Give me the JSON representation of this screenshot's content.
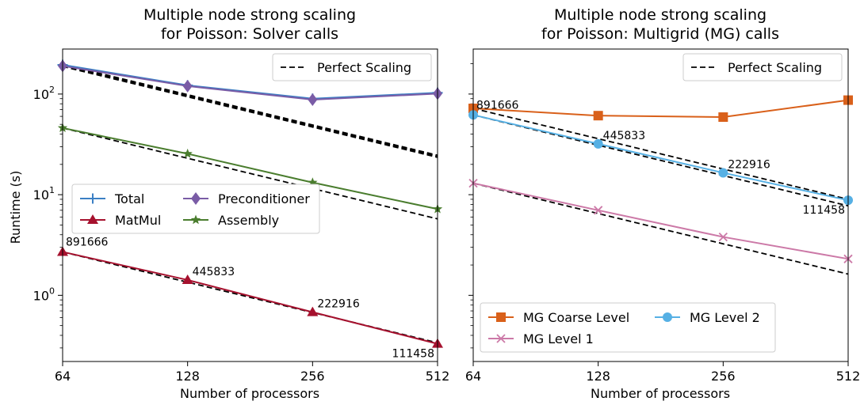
{
  "figure_note": "",
  "chart_data": [
    {
      "type": "line",
      "title": "Multiple node strong scaling\nfor Poisson: Solver calls",
      "xlabel": "Number of processors",
      "ylabel": "Runtime (s)",
      "x": [
        64,
        128,
        256,
        512
      ],
      "xscale": "log2",
      "yscale": "log10",
      "ylim": [
        0.22,
        280
      ],
      "xticks": [
        "64",
        "128",
        "256",
        "512"
      ],
      "yticks": [
        "10^0",
        "10^1",
        "10^2"
      ],
      "perfect_scaling_label": "Perfect Scaling",
      "series": [
        {
          "name": "Total",
          "color": "#3b7fc4",
          "marker": "plus",
          "values": [
            195,
            122,
            90,
            103
          ]
        },
        {
          "name": "Preconditioner",
          "color": "#7a5ca6",
          "marker": "diamond",
          "values": [
            190,
            120,
            88,
            101
          ]
        },
        {
          "name": "MatMul",
          "color": "#a6112e",
          "marker": "triangle",
          "values": [
            2.7,
            1.42,
            0.68,
            0.33
          ]
        },
        {
          "name": "Assembly",
          "color": "#4a7d2e",
          "marker": "star",
          "values": [
            46,
            25.5,
            13.2,
            7.2
          ]
        }
      ],
      "perfect_lines": [
        {
          "start": 195,
          "width": 3
        },
        {
          "start": 190,
          "width": 3
        },
        {
          "start": 46,
          "width": 1.8
        },
        {
          "start": 2.7,
          "width": 1.8
        }
      ],
      "annotations": [
        {
          "text": "891666",
          "x": 64,
          "y": 2.7
        },
        {
          "text": "445833",
          "x": 128,
          "y": 1.42
        },
        {
          "text": "222916",
          "x": 256,
          "y": 0.68
        },
        {
          "text": "111458",
          "x": 512,
          "y": 0.33
        }
      ],
      "legend": {
        "placement": "center-left",
        "items": [
          "Total",
          "Preconditioner",
          "MatMul",
          "Assembly"
        ]
      }
    },
    {
      "type": "line",
      "title": "Multiple node strong scaling\nfor Poisson: Multigrid (MG) calls",
      "xlabel": "Number of processors",
      "ylabel": "",
      "x": [
        64,
        128,
        256,
        512
      ],
      "xscale": "log2",
      "yscale": "log10",
      "ylim": [
        0.22,
        280
      ],
      "xticks": [
        "64",
        "128",
        "256",
        "512"
      ],
      "perfect_scaling_label": "Perfect Scaling",
      "series": [
        {
          "name": "MG Coarse Level",
          "color": "#d9601a",
          "marker": "square",
          "values": [
            72,
            61,
            59,
            87
          ]
        },
        {
          "name": "MG Level 2",
          "color": "#56b0e4",
          "marker": "circle",
          "values": [
            62,
            32,
            16.5,
            8.8
          ]
        },
        {
          "name": "MG Level 1",
          "color": "#cc79a7",
          "marker": "x",
          "values": [
            13,
            7.0,
            3.8,
            2.3
          ]
        }
      ],
      "perfect_lines": [
        {
          "start": 72,
          "width": 1.8
        },
        {
          "start": 62,
          "width": 1.8
        },
        {
          "start": 13,
          "width": 1.8
        }
      ],
      "annotations": [
        {
          "text": "891666",
          "x": 64,
          "y": 62
        },
        {
          "text": "445833",
          "x": 128,
          "y": 32
        },
        {
          "text": "222916",
          "x": 256,
          "y": 16.5
        },
        {
          "text": "111458",
          "x": 512,
          "y": 8.8
        }
      ],
      "legend": {
        "placement": "bottom-left",
        "items": [
          "MG Coarse Level",
          "MG Level 2",
          "MG Level 1"
        ]
      }
    }
  ]
}
